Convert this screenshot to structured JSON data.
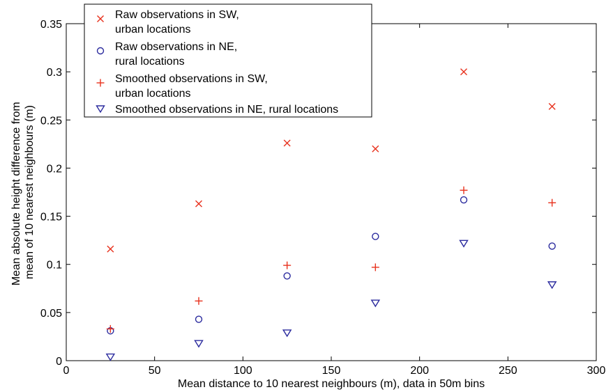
{
  "chart_data": {
    "type": "scatter",
    "title": "",
    "xlabel": "Mean distance to 10 nearest neighbours (m), data in 50m bins",
    "ylabel_lines": [
      "Mean absolute height difference from",
      "mean of 10 nearest neighbours (m)"
    ],
    "xlim": [
      0,
      300
    ],
    "ylim": [
      0,
      0.35
    ],
    "xticks": [
      0,
      50,
      100,
      150,
      200,
      250,
      300
    ],
    "yticks": [
      0,
      0.05,
      0.1,
      0.15,
      0.2,
      0.25,
      0.3,
      0.35
    ],
    "xtick_labels": [
      "0",
      "50",
      "100",
      "150",
      "200",
      "250",
      "300"
    ],
    "ytick_labels": [
      "0",
      "0.05",
      "0.1",
      "0.15",
      "0.2",
      "0.25",
      "0.3",
      "0.35"
    ],
    "grid": false,
    "legend_position": "top-left",
    "series": [
      {
        "name_lines": [
          "Raw observations in SW,",
          "urban locations"
        ],
        "marker": "x",
        "color": "#e8321e",
        "x": [
          25,
          75,
          125,
          175,
          225,
          275
        ],
        "y": [
          0.116,
          0.163,
          0.226,
          0.22,
          0.3,
          0.264
        ]
      },
      {
        "name_lines": [
          "Raw observations in NE,",
          "rural locations"
        ],
        "marker": "circle",
        "color": "#2b2b9e",
        "x": [
          25,
          75,
          125,
          175,
          225,
          275
        ],
        "y": [
          0.031,
          0.043,
          0.088,
          0.129,
          0.167,
          0.119
        ]
      },
      {
        "name_lines": [
          "Smoothed observations in SW,",
          "urban locations"
        ],
        "marker": "plus",
        "color": "#e8321e",
        "x": [
          25,
          75,
          125,
          175,
          225,
          275
        ],
        "y": [
          0.033,
          0.062,
          0.099,
          0.097,
          0.177,
          0.164
        ]
      },
      {
        "name_lines": [
          "Smoothed observations in NE, rural locations"
        ],
        "marker": "triangle-down",
        "color": "#2b2b9e",
        "x": [
          25,
          75,
          125,
          175,
          225,
          275
        ],
        "y": [
          0.004,
          0.018,
          0.029,
          0.06,
          0.122,
          0.079
        ]
      }
    ]
  }
}
